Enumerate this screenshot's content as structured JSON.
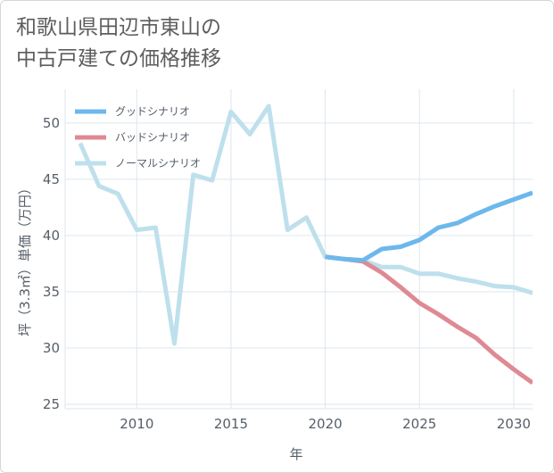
{
  "title_lines": [
    "和歌山県田辺市東山の",
    "中古戸建ての価格推移"
  ],
  "colors": {
    "good": "#6cb8ec",
    "bad": "#df8a93",
    "normal": "#bee0ec",
    "grid": "#dde6ee",
    "axis": "#555e68"
  },
  "chart_data": {
    "type": "line",
    "title": "和歌山県田辺市東山の中古戸建ての価格推移",
    "xlabel": "年",
    "ylabel": "坪（3.3㎡）単価（万円）",
    "xlim": [
      2006.2,
      2031
    ],
    "ylim": [
      24.6,
      53
    ],
    "xticks": [
      2010,
      2015,
      2020,
      2025,
      2030
    ],
    "yticks": [
      25,
      30,
      35,
      40,
      45,
      50
    ],
    "grid": true,
    "legend_position": "top-left",
    "series": [
      {
        "key": "good",
        "name": "グッドシナリオ",
        "x": [
          2020,
          2021,
          2022,
          2023,
          2024,
          2025,
          2026,
          2027,
          2028,
          2029,
          2030,
          2031
        ],
        "values": [
          38.1,
          37.9,
          37.8,
          38.8,
          39.0,
          39.6,
          40.7,
          41.1,
          41.9,
          42.6,
          43.2,
          43.8
        ]
      },
      {
        "key": "bad",
        "name": "バッドシナリオ",
        "x": [
          2020,
          2021,
          2022,
          2023,
          2024,
          2025,
          2026,
          2027,
          2028,
          2029,
          2030,
          2031
        ],
        "values": [
          38.1,
          37.9,
          37.7,
          36.7,
          35.4,
          34.0,
          33.0,
          31.9,
          30.9,
          29.4,
          28.1,
          26.9
        ]
      },
      {
        "key": "normal",
        "name": "ノーマルシナリオ",
        "x": [
          2007,
          2008,
          2009,
          2010,
          2011,
          2012,
          2013,
          2014,
          2015,
          2016,
          2017,
          2018,
          2019,
          2020,
          2021,
          2022,
          2023,
          2024,
          2025,
          2026,
          2027,
          2028,
          2029,
          2030,
          2031
        ],
        "values": [
          48.2,
          44.4,
          43.7,
          40.5,
          40.7,
          30.4,
          45.4,
          44.9,
          51.0,
          49.0,
          51.5,
          40.5,
          41.6,
          38.1,
          37.9,
          37.8,
          37.2,
          37.2,
          36.6,
          36.6,
          36.2,
          35.9,
          35.5,
          35.4,
          34.9
        ]
      }
    ]
  }
}
